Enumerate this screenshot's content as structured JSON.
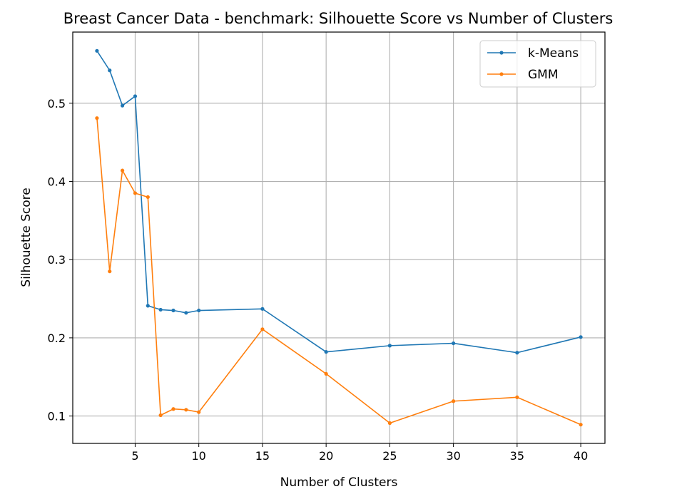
{
  "chart_data": {
    "type": "line",
    "title": "Breast Cancer Data - benchmark: Silhouette Score vs Number of Clusters",
    "xlabel": "Number of Clusters",
    "ylabel": "Silhouette Score",
    "x": [
      2,
      3,
      4,
      5,
      6,
      7,
      8,
      9,
      10,
      15,
      20,
      25,
      30,
      35,
      40
    ],
    "series": [
      {
        "name": "k-Means",
        "color": "#1f77b4",
        "values": [
          0.567,
          0.542,
          0.497,
          0.509,
          0.241,
          0.236,
          0.235,
          0.232,
          0.235,
          0.237,
          0.182,
          0.19,
          0.193,
          0.181,
          0.201
        ]
      },
      {
        "name": "GMM",
        "color": "#ff7f0e",
        "values": [
          0.481,
          0.285,
          0.414,
          0.385,
          0.38,
          0.101,
          0.109,
          0.108,
          0.105,
          0.211,
          0.154,
          0.091,
          0.119,
          0.124,
          0.089
        ]
      }
    ],
    "xticks": [
      5,
      10,
      15,
      20,
      25,
      30,
      35,
      40
    ],
    "xtick_labels": [
      "5",
      "10",
      "15",
      "20",
      "25",
      "30",
      "35",
      "40"
    ],
    "yticks": [
      0.1,
      0.2,
      0.3,
      0.4,
      0.5
    ],
    "ytick_labels": [
      "0.1",
      "0.2",
      "0.3",
      "0.4",
      "0.5"
    ],
    "xlim": [
      0.1,
      41.9
    ],
    "ylim": [
      0.065,
      0.591
    ],
    "grid": true,
    "legend_position": "top-right"
  }
}
